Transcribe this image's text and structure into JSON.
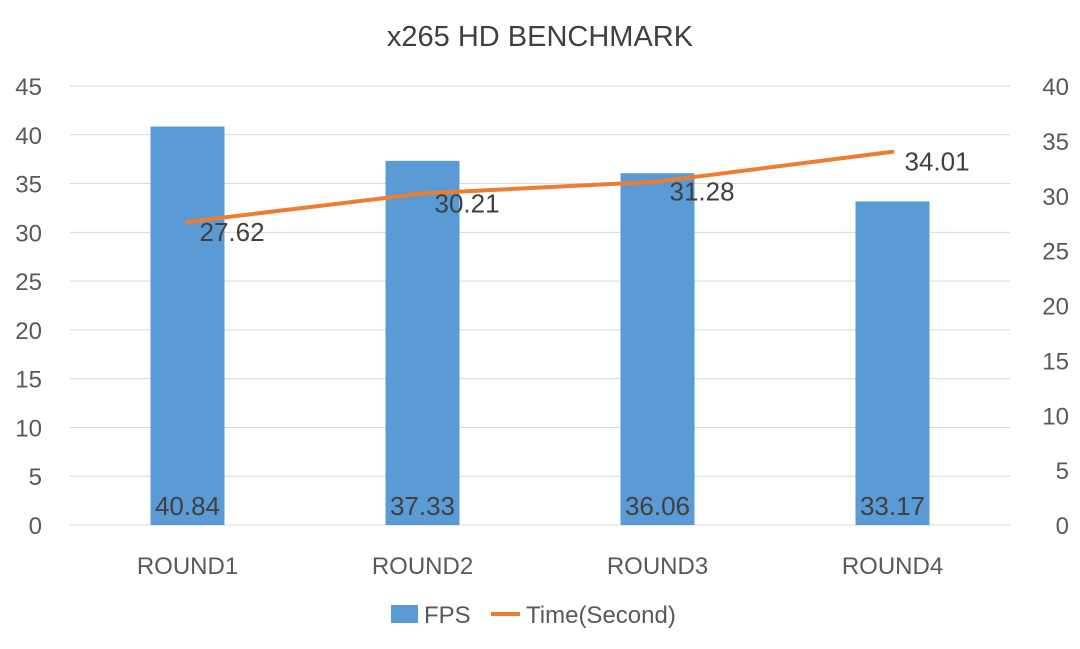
{
  "chart_data": {
    "type": "bar",
    "title": "x265 HD BENCHMARK",
    "categories": [
      "ROUND1",
      "ROUND2",
      "ROUND3",
      "ROUND4"
    ],
    "series": [
      {
        "name": "FPS",
        "type": "bar",
        "axis": "left",
        "color": "#5b9bd5",
        "values": [
          40.84,
          37.33,
          36.06,
          33.17
        ]
      },
      {
        "name": "Time(Second)",
        "type": "line",
        "axis": "right",
        "color": "#ed7d31",
        "values": [
          27.62,
          30.21,
          31.28,
          34.01
        ]
      }
    ],
    "ylim": [
      0,
      45
    ],
    "yticks": [
      0,
      5,
      10,
      15,
      20,
      25,
      30,
      35,
      40,
      45
    ],
    "y2lim": [
      0,
      40
    ],
    "y2ticks": [
      0,
      5,
      10,
      15,
      20,
      25,
      30,
      35,
      40
    ],
    "grid": true,
    "legend_position": "bottom"
  }
}
